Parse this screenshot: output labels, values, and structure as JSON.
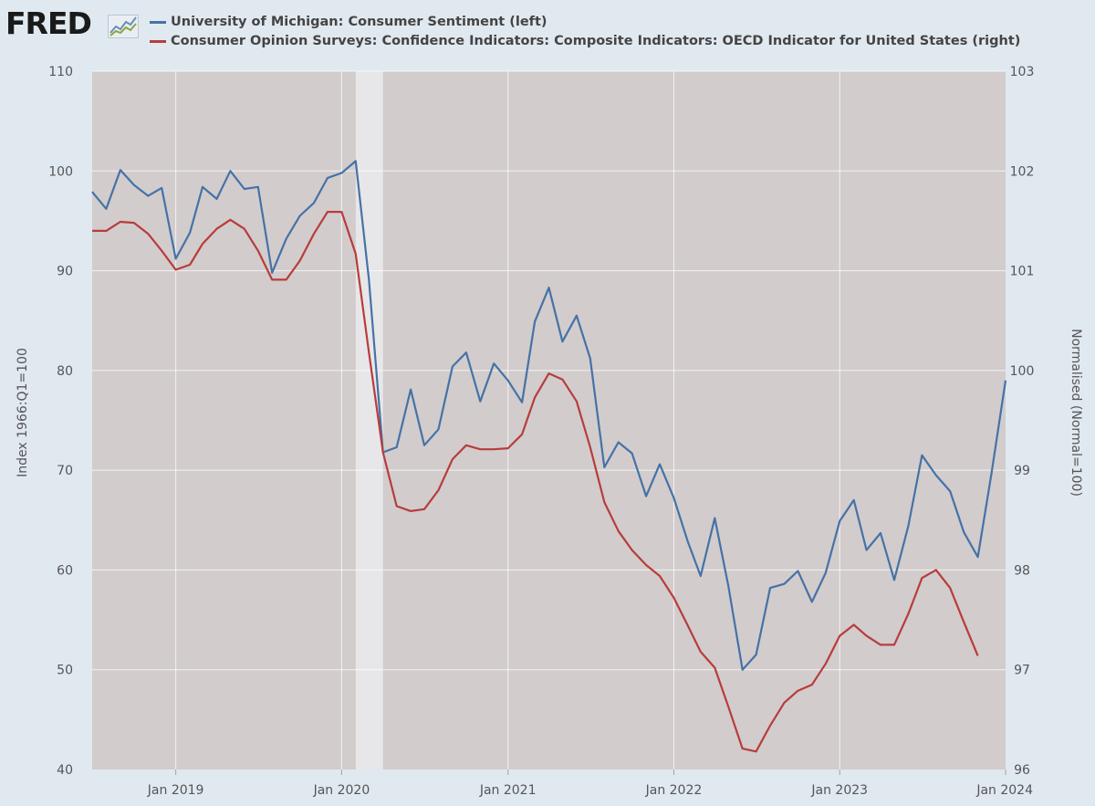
{
  "header": {
    "logo_text": "FRED"
  },
  "colors": {
    "background": "#e1e9f0",
    "plot_background": "#d2cccc",
    "recession_band": "#e7e7e9",
    "series_left": "#4572a7",
    "series_right": "#b83c3c",
    "grid": "#ffffff"
  },
  "chart_data": {
    "type": "line",
    "title": "",
    "xlabel": "",
    "ylabel_left": "Index 1966:Q1=100",
    "ylabel_right": "Normalised (Normal=100)",
    "xlim": [
      "2018-07-01",
      "2024-01-01"
    ],
    "ylim_left": [
      40,
      110
    ],
    "ylim_right": [
      96,
      103
    ],
    "yticks_left": [
      40,
      50,
      60,
      70,
      80,
      90,
      100,
      110
    ],
    "yticks_left_labels": [
      "40",
      "50",
      "60",
      "70",
      "80",
      "90",
      "100",
      "110"
    ],
    "yticks_right": [
      96,
      97,
      98,
      99,
      100,
      101,
      102,
      103
    ],
    "yticks_right_labels": [
      "96",
      "97",
      "98",
      "99",
      "100",
      "101",
      "102",
      "103"
    ],
    "xticks": [
      "2019-01-01",
      "2020-01-01",
      "2021-01-01",
      "2022-01-01",
      "2023-01-01",
      "2024-01-01"
    ],
    "xtick_labels": [
      "Jan 2019",
      "Jan 2020",
      "Jan 2021",
      "Jan 2022",
      "Jan 2023",
      "Jan 2024"
    ],
    "grid": true,
    "legend_position": "top",
    "recession": {
      "start": "2020-02-01",
      "end": "2020-04-01"
    },
    "series": [
      {
        "name": "University of Michigan: Consumer Sentiment (left)",
        "axis": "left",
        "color": "#4572a7",
        "start": "2018-07-01",
        "freq": "monthly",
        "values": [
          97.9,
          96.2,
          100.1,
          98.6,
          97.5,
          98.3,
          91.2,
          93.8,
          98.4,
          97.2,
          100.0,
          98.2,
          98.4,
          89.8,
          93.2,
          95.5,
          96.8,
          99.3,
          99.8,
          101.0,
          89.1,
          71.8,
          72.3,
          78.1,
          72.5,
          74.1,
          80.4,
          81.8,
          76.9,
          80.7,
          79.0,
          76.8,
          84.9,
          88.3,
          82.9,
          85.5,
          81.2,
          70.3,
          72.8,
          71.7,
          67.4,
          70.6,
          67.2,
          62.8,
          59.4,
          65.2,
          58.4,
          50.0,
          51.5,
          58.2,
          58.6,
          59.9,
          56.8,
          59.7,
          64.9,
          67.0,
          62.0,
          63.7,
          59.0,
          64.4,
          71.5,
          69.5,
          67.9,
          63.8,
          61.3,
          69.7,
          79.0
        ]
      },
      {
        "name": "Consumer Opinion Surveys: Confidence Indicators: Composite Indicators: OECD Indicator for United States (right)",
        "axis": "right",
        "color": "#b83c3c",
        "start": "2018-07-01",
        "freq": "monthly",
        "values": [
          101.4,
          101.4,
          101.49,
          101.48,
          101.37,
          101.2,
          101.01,
          101.06,
          101.27,
          101.42,
          101.51,
          101.42,
          101.2,
          100.91,
          100.91,
          101.1,
          101.37,
          101.59,
          101.59,
          101.17,
          100.18,
          99.18,
          98.64,
          98.59,
          98.61,
          98.8,
          99.11,
          99.25,
          99.21,
          99.21,
          99.22,
          99.36,
          99.73,
          99.97,
          99.91,
          99.69,
          99.23,
          98.68,
          98.39,
          98.2,
          98.05,
          97.94,
          97.72,
          97.44,
          97.18,
          97.02,
          96.63,
          96.21,
          96.18,
          96.44,
          96.67,
          96.79,
          96.85,
          97.06,
          97.34,
          97.45,
          97.34,
          97.25,
          97.25,
          97.56,
          97.92,
          98.0,
          97.82,
          97.48,
          97.14
        ]
      }
    ]
  }
}
